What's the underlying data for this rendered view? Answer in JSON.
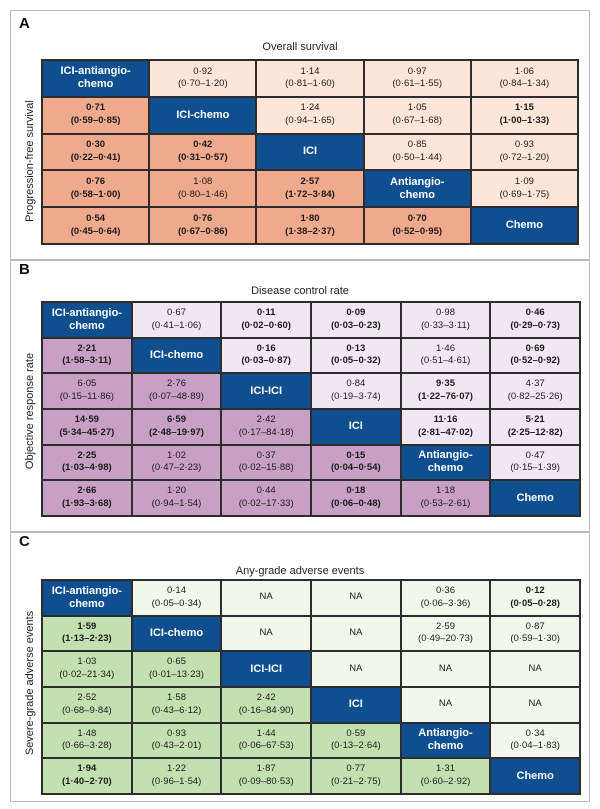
{
  "chart_data": [
    {
      "type": "table",
      "panel_label": "A",
      "title": "Overall survival",
      "ylabel": "Progression-free survival",
      "treatments": [
        "ICI-antiangio-chemo",
        "ICI-chemo",
        "ICI",
        "Antiangio-chemo",
        "Chemo"
      ],
      "colors": {
        "upper": "#fde6d9",
        "lower": "#efa98d",
        "diag": "#0f4f8f"
      },
      "rows": [
        [
          {
            "d": "ICI-antiangio-chemo"
          },
          {
            "v": "0·92",
            "ci": "(0·70–1·20)"
          },
          {
            "v": "1·14",
            "ci": "(0·81–1·60)"
          },
          {
            "v": "0·97",
            "ci": "(0·61–1·55)"
          },
          {
            "v": "1·06",
            "ci": "(0·84–1·34)"
          }
        ],
        [
          {
            "v": "0·71",
            "ci": "(0·59–0·85)",
            "b": true
          },
          {
            "d": "ICI-chemo"
          },
          {
            "v": "1·24",
            "ci": "(0·94–1·65)"
          },
          {
            "v": "1·05",
            "ci": "(0·67–1·68)"
          },
          {
            "v": "1·15",
            "ci": "(1·00–1·33)",
            "b": true
          }
        ],
        [
          {
            "v": "0·30",
            "ci": "(0·22–0·41)",
            "b": true
          },
          {
            "v": "0·42",
            "ci": "(0·31–0·57)",
            "b": true
          },
          {
            "d": "ICI"
          },
          {
            "v": "0·85",
            "ci": "(0·50–1·44)"
          },
          {
            "v": "0·93",
            "ci": "(0·72–1·20)"
          }
        ],
        [
          {
            "v": "0·76",
            "ci": "(0·58–1·00)",
            "b": true
          },
          {
            "v": "1·08",
            "ci": "(0·80–1·46)"
          },
          {
            "v": "2·57",
            "ci": "(1·72–3·84)",
            "b": true
          },
          {
            "d": "Antiangio-chemo"
          },
          {
            "v": "1·09",
            "ci": "(0·69–1·75)"
          }
        ],
        [
          {
            "v": "0·54",
            "ci": "(0·45–0·64)",
            "b": true
          },
          {
            "v": "0·76",
            "ci": "(0·67–0·86)",
            "b": true
          },
          {
            "v": "1·80",
            "ci": "(1·38–2·37)",
            "b": true
          },
          {
            "v": "0·70",
            "ci": "(0·52–0·95)",
            "b": true
          },
          {
            "d": "Chemo"
          }
        ]
      ]
    },
    {
      "type": "table",
      "panel_label": "B",
      "title": "Disease control rate",
      "ylabel": "Objective response rate",
      "treatments": [
        "ICI-antiangio-chemo",
        "ICI-chemo",
        "ICI-ICI",
        "ICI",
        "Antiangio-chemo",
        "Chemo"
      ],
      "colors": {
        "upper": "#f1e7f3",
        "lower": "#c8a0c6",
        "diag": "#0f4f8f"
      },
      "rows": [
        [
          {
            "d": "ICI-antiangio-chemo"
          },
          {
            "v": "0·67",
            "ci": "(0·41–1·06)"
          },
          {
            "v": "0·11",
            "ci": "(0·02–0·60)",
            "b": true
          },
          {
            "v": "0·09",
            "ci": "(0·03–0·23)",
            "b": true
          },
          {
            "v": "0·98",
            "ci": "(0·33–3·11)"
          },
          {
            "v": "0·46",
            "ci": "(0·29–0·73)",
            "b": true
          }
        ],
        [
          {
            "v": "2·21",
            "ci": "(1·58–3·11)",
            "b": true
          },
          {
            "d": "ICI-chemo"
          },
          {
            "v": "0·16",
            "ci": "(0·03–0·87)",
            "b": true
          },
          {
            "v": "0·13",
            "ci": "(0·05–0·32)",
            "b": true
          },
          {
            "v": "1·46",
            "ci": "(0·51–4·61)"
          },
          {
            "v": "0·69",
            "ci": "(0·52–0·92)",
            "b": true
          }
        ],
        [
          {
            "v": "6·05",
            "ci": "(0·15–11·86)"
          },
          {
            "v": "2·76",
            "ci": "(0·07–48·89)"
          },
          {
            "d": "ICI-ICI"
          },
          {
            "v": "0·84",
            "ci": "(0·19–3·74)"
          },
          {
            "v": "9·35",
            "ci": "(1·22–76·07)",
            "b": true
          },
          {
            "v": "4·37",
            "ci": "(0·82–25·26)"
          }
        ],
        [
          {
            "v": "14·59",
            "ci": "(5·34–45·27)",
            "b": true
          },
          {
            "v": "6·59",
            "ci": "(2·48–19·97)",
            "b": true
          },
          {
            "v": "2·42",
            "ci": "(0·17–84·18)"
          },
          {
            "d": "ICI"
          },
          {
            "v": "11·16",
            "ci": "(2·81–47·02)",
            "b": true
          },
          {
            "v": "5·21",
            "ci": "(2·25–12·82)",
            "b": true
          }
        ],
        [
          {
            "v": "2·25",
            "ci": "(1·03–4·98)",
            "b": true
          },
          {
            "v": "1·02",
            "ci": "(0·47–2·23)"
          },
          {
            "v": "0·37",
            "ci": "(0·02–15·88)"
          },
          {
            "v": "0·15",
            "ci": "(0·04–0·54)",
            "b": true
          },
          {
            "d": "Antiangio-chemo"
          },
          {
            "v": "0·47",
            "ci": "(0·15–1·39)"
          }
        ],
        [
          {
            "v": "2·66",
            "ci": "(1·93–3·68)",
            "b": true
          },
          {
            "v": "1·20",
            "ci": "(0·94–1·54)"
          },
          {
            "v": "0·44",
            "ci": "(0·02–17·33)"
          },
          {
            "v": "0·18",
            "ci": "(0·06–0·48)",
            "b": true
          },
          {
            "v": "1·18",
            "ci": "(0·53–2·61)"
          },
          {
            "d": "Chemo"
          }
        ]
      ]
    },
    {
      "type": "table",
      "panel_label": "C",
      "title": "Any-grade adverse events",
      "ylabel": "Severe-grade adverse events",
      "treatments": [
        "ICI-antiangio-chemo",
        "ICI-chemo",
        "ICI-ICI",
        "ICI",
        "Antiangio-chemo",
        "Chemo"
      ],
      "colors": {
        "upper": "#f1f7ea",
        "lower": "#c3e0b1",
        "diag": "#0f4f8f"
      },
      "rows": [
        [
          {
            "d": "ICI-antiangio-chemo"
          },
          {
            "v": "0·14",
            "ci": "(0·05–0·34)"
          },
          {
            "v": "NA"
          },
          {
            "v": "NA"
          },
          {
            "v": "0·36",
            "ci": "(0·06–3·36)"
          },
          {
            "v": "0·12",
            "ci": "(0·05–0·28)",
            "b": true
          }
        ],
        [
          {
            "v": "1·59",
            "ci": "(1·13–2·23)",
            "b": true
          },
          {
            "d": "ICI-chemo"
          },
          {
            "v": "NA"
          },
          {
            "v": "NA"
          },
          {
            "v": "2·59",
            "ci": "(0·49–20·73)"
          },
          {
            "v": "0·87",
            "ci": "(0·59–1·30)"
          }
        ],
        [
          {
            "v": "1·03",
            "ci": "(0·02–21·34)"
          },
          {
            "v": "0·65",
            "ci": "(0·01–13·23)"
          },
          {
            "d": "ICI-ICI"
          },
          {
            "v": "NA"
          },
          {
            "v": "NA"
          },
          {
            "v": "NA"
          }
        ],
        [
          {
            "v": "2·52",
            "ci": "(0·68–9·84)"
          },
          {
            "v": "1·58",
            "ci": "(0·43–6·12)"
          },
          {
            "v": "2·42",
            "ci": "(0·16–84·90)"
          },
          {
            "d": "ICI"
          },
          {
            "v": "NA"
          },
          {
            "v": "NA"
          }
        ],
        [
          {
            "v": "1·48",
            "ci": "(0·66–3·28)"
          },
          {
            "v": "0·93",
            "ci": "(0·43–2·01)"
          },
          {
            "v": "1·44",
            "ci": "(0·06–67·53)"
          },
          {
            "v": "0·59",
            "ci": "(0·13–2·64)"
          },
          {
            "d": "Antiangio-chemo"
          },
          {
            "v": "0·34",
            "ci": "(0·04–1·83)"
          }
        ],
        [
          {
            "v": "1·94",
            "ci": "(1·40–2·70)",
            "b": true
          },
          {
            "v": "1·22",
            "ci": "(0·96–1·54)"
          },
          {
            "v": "1·87",
            "ci": "(0·09–80·53)"
          },
          {
            "v": "0·77",
            "ci": "(0·21–2·75)"
          },
          {
            "v": "1·31",
            "ci": "(0·60–2·92)"
          },
          {
            "d": "Chemo"
          }
        ]
      ]
    }
  ]
}
